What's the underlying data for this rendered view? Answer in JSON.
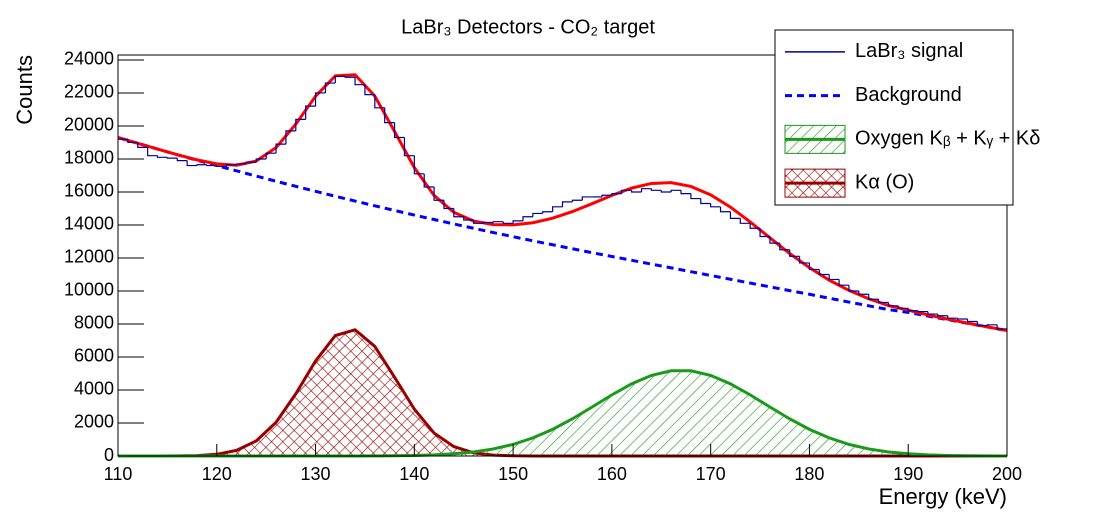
{
  "chart_data": {
    "type": "histogram",
    "title": "LaBr₃ Detectors - CO₂ target",
    "x_label": "Energy (keV)",
    "y_label": "Counts",
    "xlim": [
      110,
      200
    ],
    "ylim": [
      0,
      24300
    ],
    "xticks": [
      110,
      120,
      130,
      140,
      150,
      160,
      170,
      180,
      190,
      200
    ],
    "yticks": [
      0,
      2000,
      4000,
      6000,
      8000,
      10000,
      12000,
      14000,
      16000,
      18000,
      20000,
      22000,
      24000
    ],
    "legend": "top-right",
    "grid": false,
    "bins": [
      110,
      111,
      112,
      113,
      114,
      115,
      116,
      117,
      118,
      119,
      120,
      121,
      122,
      123,
      124,
      125,
      126,
      127,
      128,
      129,
      130,
      131,
      132,
      133,
      134,
      135,
      136,
      137,
      138,
      139,
      140,
      141,
      142,
      143,
      144,
      145,
      146,
      147,
      148,
      149,
      150,
      151,
      152,
      153,
      154,
      155,
      156,
      157,
      158,
      159,
      160,
      161,
      162,
      163,
      164,
      165,
      166,
      167,
      168,
      169,
      170,
      171,
      172,
      173,
      174,
      175,
      176,
      177,
      178,
      179,
      180,
      181,
      182,
      183,
      184,
      185,
      186,
      187,
      188,
      189,
      190,
      191,
      192,
      193,
      194,
      195,
      196,
      197,
      198,
      199,
      200
    ],
    "series": [
      {
        "name": "LaBr₃ signal",
        "color": "#000099",
        "values": [
          19200,
          19000,
          18700,
          18200,
          18100,
          18050,
          17900,
          17600,
          17650,
          17600,
          17550,
          17650,
          17700,
          17800,
          18000,
          18350,
          18900,
          19700,
          20400,
          21200,
          22000,
          22600,
          23000,
          22950,
          22500,
          21900,
          21100,
          20200,
          19300,
          18200,
          17100,
          16300,
          15500,
          15000,
          14500,
          14300,
          14100,
          14150,
          14200,
          14100,
          14250,
          14500,
          14700,
          14800,
          15100,
          15400,
          15500,
          15700,
          15700,
          15800,
          15900,
          16100,
          16000,
          16200,
          16100,
          16000,
          16100,
          15900,
          15600,
          15300,
          15100,
          14800,
          14400,
          14100,
          13800,
          13300,
          12900,
          12500,
          12100,
          11700,
          11300,
          11000,
          10700,
          10350,
          10000,
          9800,
          9500,
          9300,
          9100,
          8950,
          8800,
          8750,
          8600,
          8500,
          8350,
          8300,
          8150,
          7900,
          7950,
          7700
        ]
      }
    ],
    "fits": {
      "type": "line",
      "x": [
        110,
        112,
        114,
        116,
        118,
        120,
        122,
        124,
        126,
        128,
        130,
        132,
        134,
        136,
        138,
        140,
        142,
        144,
        146,
        148,
        150,
        152,
        154,
        156,
        158,
        160,
        162,
        164,
        166,
        168,
        170,
        172,
        174,
        176,
        178,
        180,
        182,
        184,
        186,
        188,
        190,
        192,
        194,
        196,
        198,
        200
      ],
      "series": [
        {
          "color": "#ff0000",
          "style": "solid",
          "fill": "none",
          "values": [
            19300,
            18950,
            18600,
            18256,
            17946,
            17703,
            17620,
            17875,
            18690,
            20110,
            21800,
            23040,
            23103,
            21807,
            19665,
            17474,
            15789,
            14764,
            14238,
            14020,
            14007,
            14137,
            14413,
            14811,
            15290,
            15795,
            16234,
            16516,
            16564,
            16334,
            15826,
            15084,
            14185,
            13220,
            12271,
            11413,
            10657,
            10034,
            9527,
            9115,
            8834,
            8549,
            8294,
            8055,
            7826,
            7602
          ]
        },
        {
          "name": "Background",
          "color": "#0000ff",
          "style": "dashed",
          "fill": "none",
          "values": [
            19300,
            18950,
            18600,
            18250,
            17920,
            17600,
            17280,
            16960,
            16650,
            16340,
            16040,
            15740,
            15450,
            15160,
            14880,
            14600,
            14330,
            14060,
            13800,
            13540,
            13290,
            13040,
            12800,
            12560,
            12320,
            12090,
            11860,
            11630,
            11400,
            11170,
            10940,
            10710,
            10480,
            10250,
            10020,
            9800,
            9560,
            9330,
            9100,
            8870,
            8700,
            8480,
            8260,
            8040,
            7820,
            7600
          ]
        },
        {
          "name": "Oxygen Kᵦ + Kᵧ + Kδ",
          "color": "#1a9a1a",
          "style": "solid",
          "fill": "hatch",
          "values": [
            0,
            0,
            0,
            0,
            0,
            0,
            0,
            0,
            0,
            0,
            0,
            0,
            3,
            7,
            15,
            34,
            69,
            134,
            245,
            427,
            704,
            1097,
            1613,
            2251,
            2970,
            3705,
            4374,
            4886,
            5164,
            5164,
            4886,
            4374,
            3705,
            2970,
            2251,
            1613,
            1097,
            704,
            427,
            245,
            134,
            69,
            34,
            15,
            6,
            2
          ]
        },
        {
          "name": "Kα (O)",
          "color": "#990000",
          "style": "solid",
          "fill": "crosshatch",
          "values": [
            0,
            0,
            0,
            6,
            26,
            103,
            340,
            915,
            2040,
            3770,
            5760,
            7300,
            7650,
            6640,
            4770,
            2840,
            1390,
            570,
            193,
            53,
            13,
            0,
            0,
            0,
            0,
            0,
            0,
            0,
            0,
            0,
            0,
            0,
            0,
            0,
            0,
            0,
            0,
            0,
            0,
            0,
            0,
            0,
            0,
            0,
            0,
            0
          ]
        }
      ]
    }
  }
}
